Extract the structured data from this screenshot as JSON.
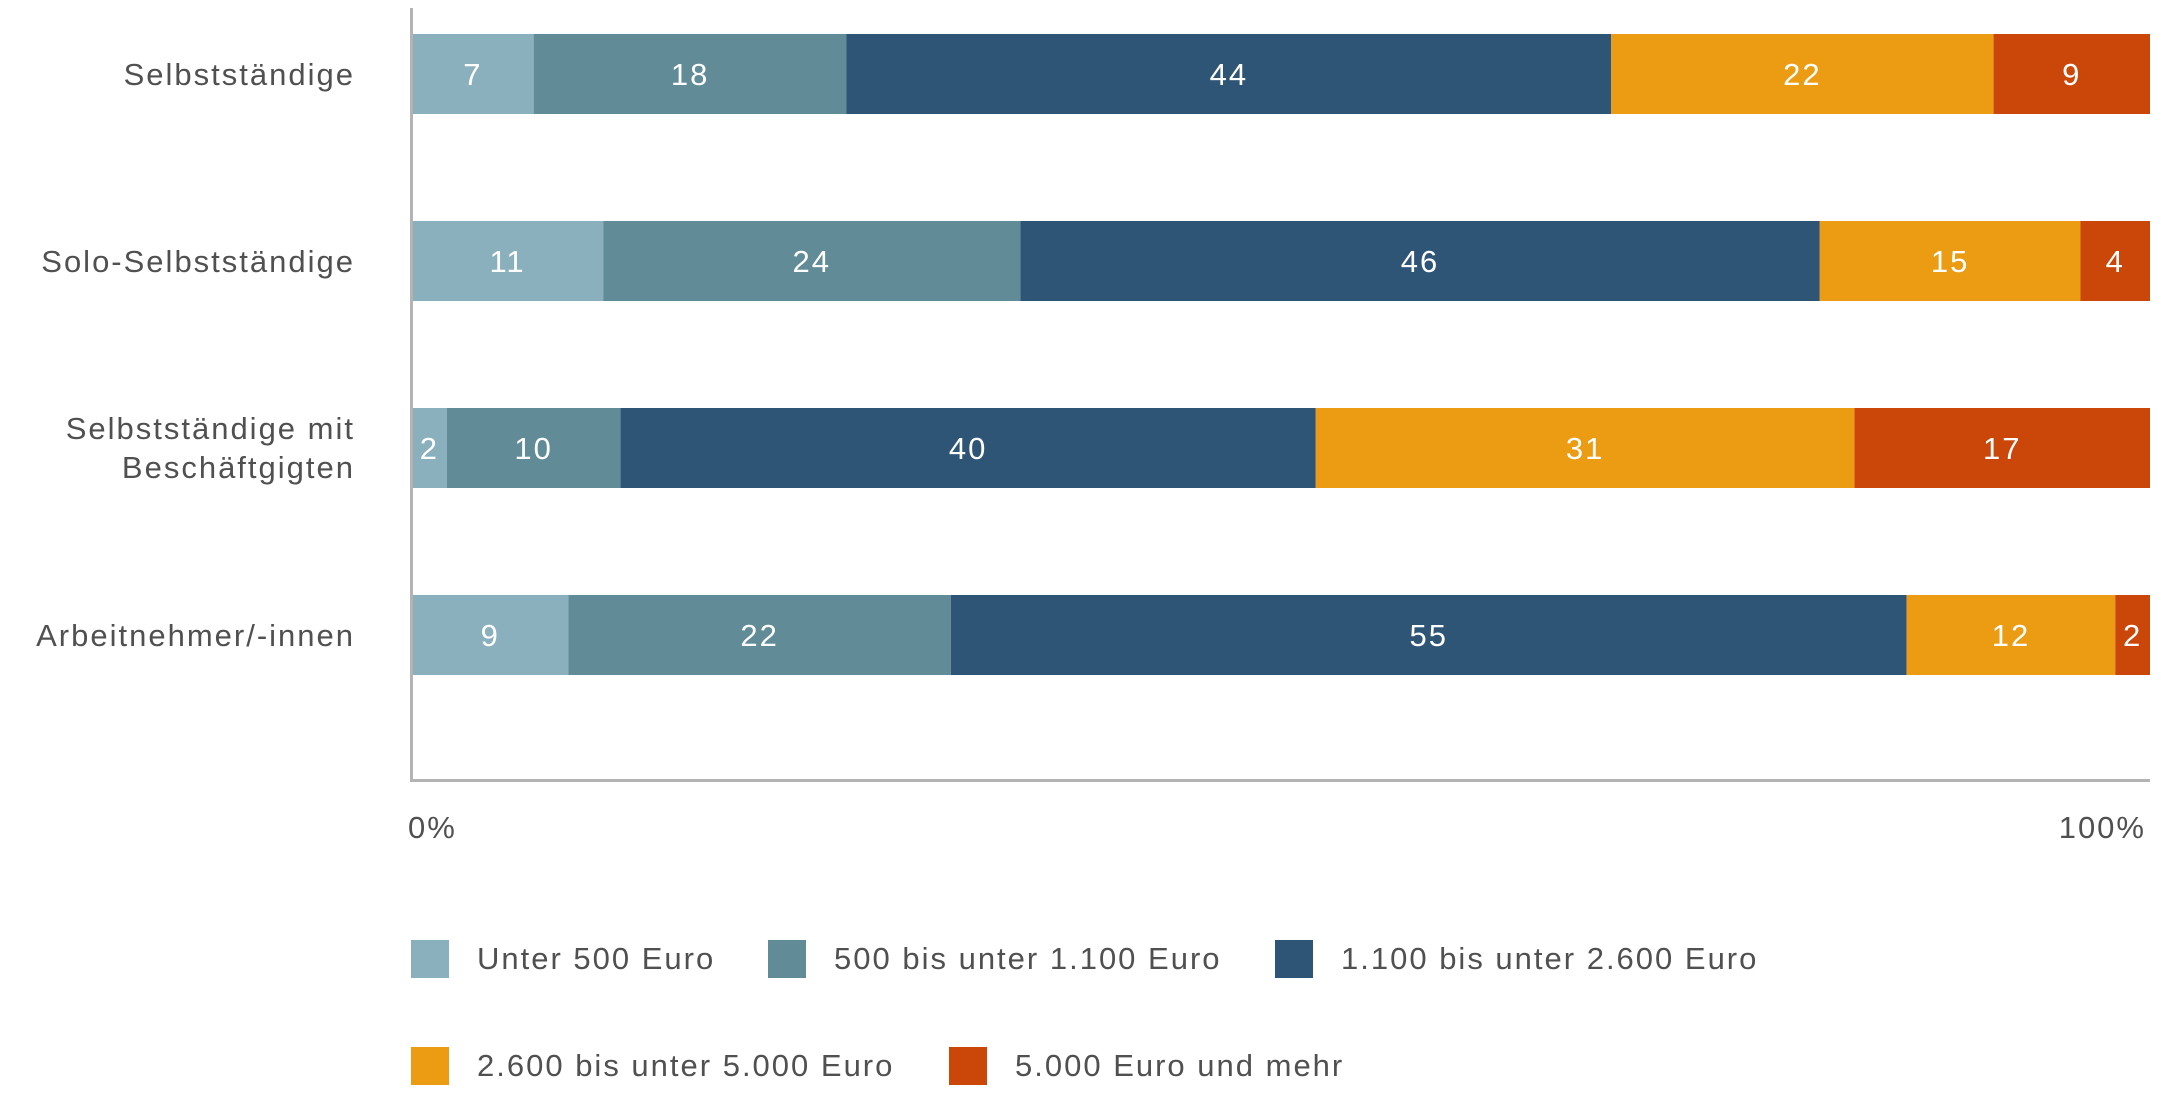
{
  "chart_data": {
    "type": "bar",
    "orientation": "horizontal",
    "stacked": true,
    "normalized": true,
    "categories": [
      "Selbstständige",
      "Solo-Selbstständige",
      "Selbstständige mit Beschäftgigten",
      "Arbeitnehmer/-innen"
    ],
    "series": [
      {
        "name": "Unter 500 Euro",
        "color": "#8aafbd",
        "values": [
          7,
          11,
          2,
          9
        ]
      },
      {
        "name": "500 bis unter 1.100 Euro",
        "color": "#628b98",
        "values": [
          18,
          24,
          10,
          22
        ]
      },
      {
        "name": "1.100 bis unter 2.600 Euro",
        "color": "#2f5576",
        "values": [
          44,
          46,
          40,
          55
        ]
      },
      {
        "name": "2.600 bis unter 5.000 Euro",
        "color": "#ec9c12",
        "values": [
          22,
          15,
          31,
          12
        ]
      },
      {
        "name": "5.000 Euro und mehr",
        "color": "#cb4709",
        "values": [
          9,
          4,
          17,
          2
        ]
      }
    ],
    "xlim": [
      0,
      100
    ],
    "x_tick_labels": [
      "0%",
      "100%"
    ],
    "title": "",
    "xlabel": "",
    "ylabel": "",
    "grid": false,
    "legend_position": "bottom",
    "data_label_color": "#ffffff",
    "axis_color": "#b3b3b3"
  }
}
